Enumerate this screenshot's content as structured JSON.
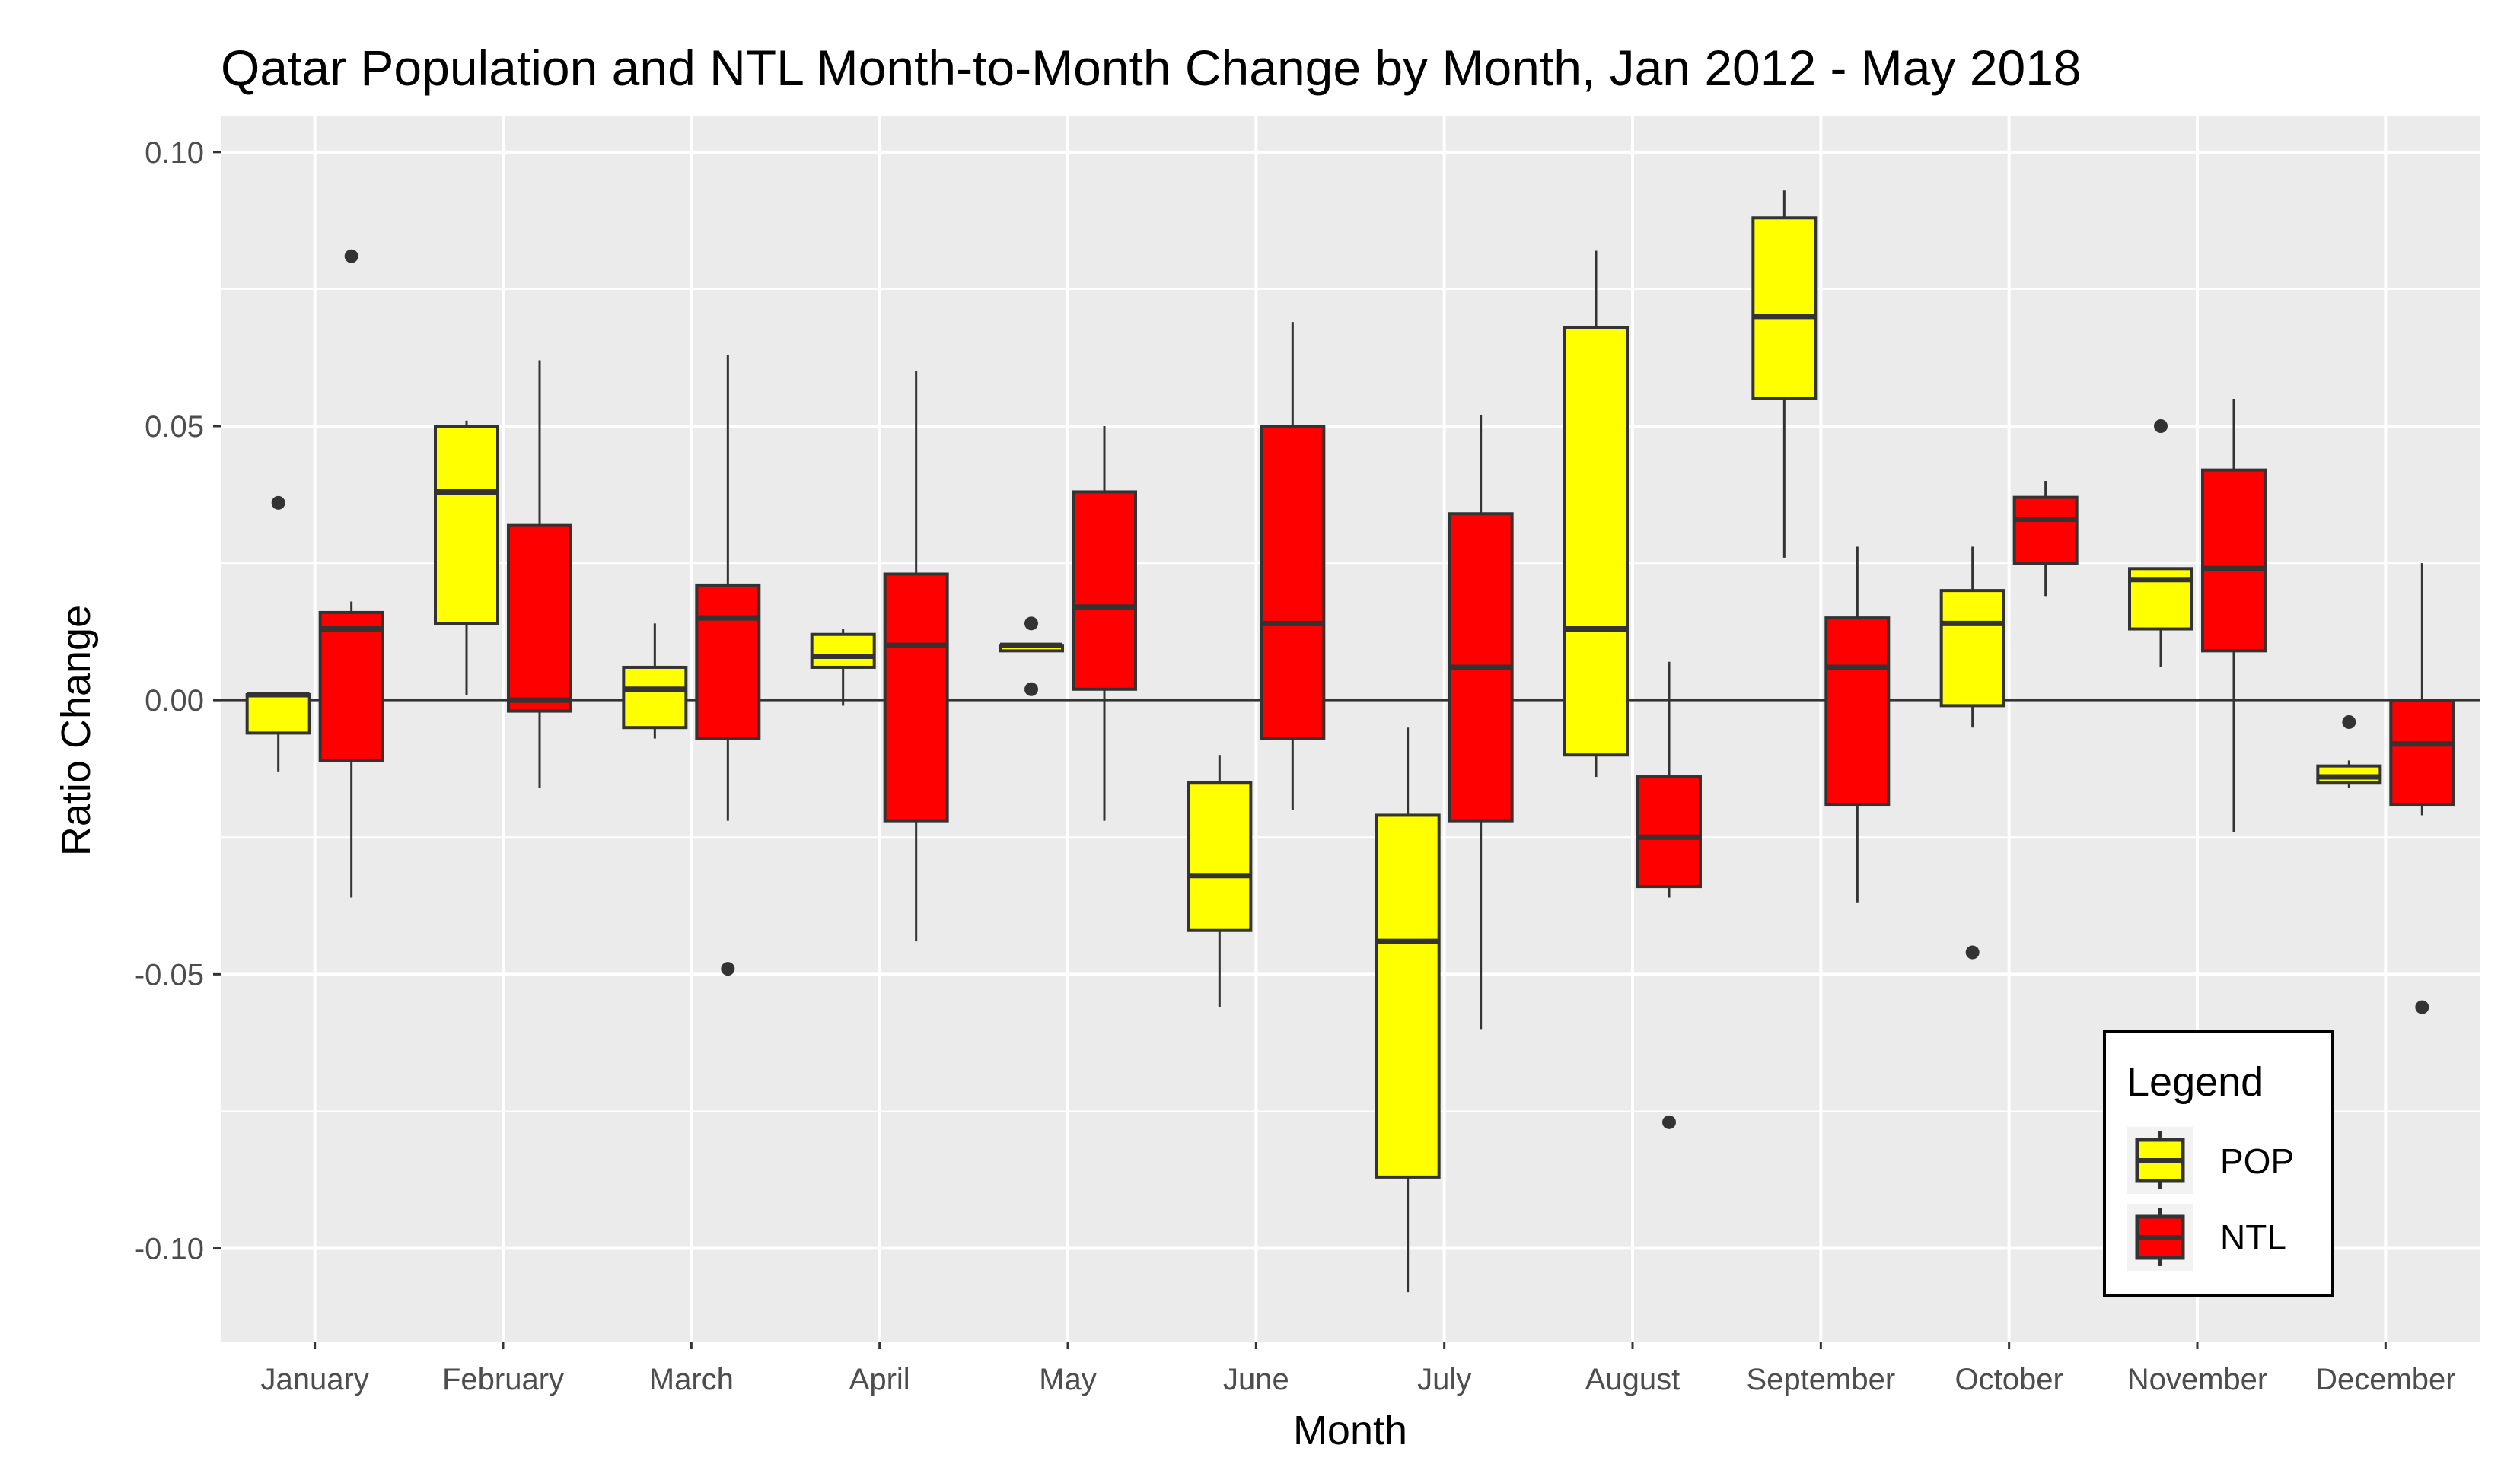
{
  "chart_data": {
    "type": "boxplot",
    "title": "Qatar Population and NTL Month-to-Month Change by Month, Jan 2012 - May 2018",
    "xlabel": "Month",
    "ylabel": "Ratio Change",
    "ylim": [
      -0.117,
      0.1065
    ],
    "yticks": [
      0.1,
      0.05,
      0.0,
      -0.05,
      -0.1
    ],
    "ytick_labels": [
      "0.10",
      "0.05",
      "0.00",
      "-0.05",
      "-0.10"
    ],
    "reference_line_y": 0.0,
    "categories": [
      "January",
      "February",
      "March",
      "April",
      "May",
      "June",
      "July",
      "August",
      "September",
      "October",
      "November",
      "December"
    ],
    "legend": {
      "title": "Legend",
      "position": "bottom-right",
      "entries": [
        {
          "name": "POP",
          "color": "#ffff00"
        },
        {
          "name": "NTL",
          "color": "#ff0000"
        }
      ]
    },
    "series": [
      {
        "name": "POP",
        "color": "#ffff00",
        "boxes": [
          {
            "min": -0.013,
            "q1": -0.006,
            "median": 0.001,
            "q3": 0.001,
            "max": 0.001,
            "outliers": [
              0.036
            ]
          },
          {
            "min": 0.001,
            "q1": 0.014,
            "median": 0.038,
            "q3": 0.05,
            "max": 0.051,
            "outliers": []
          },
          {
            "min": -0.007,
            "q1": -0.005,
            "median": 0.002,
            "q3": 0.006,
            "max": 0.014,
            "outliers": []
          },
          {
            "min": -0.001,
            "q1": 0.006,
            "median": 0.008,
            "q3": 0.012,
            "max": 0.013,
            "outliers": []
          },
          {
            "min": 0.009,
            "q1": 0.009,
            "median": 0.01,
            "q3": 0.01,
            "max": 0.01,
            "outliers": [
              0.014,
              0.002
            ]
          },
          {
            "min": -0.056,
            "q1": -0.042,
            "median": -0.032,
            "q3": -0.015,
            "max": -0.01,
            "outliers": []
          },
          {
            "min": -0.108,
            "q1": -0.087,
            "median": -0.044,
            "q3": -0.021,
            "max": -0.005,
            "outliers": []
          },
          {
            "min": -0.014,
            "q1": -0.01,
            "median": 0.013,
            "q3": 0.068,
            "max": 0.082,
            "outliers": []
          },
          {
            "min": 0.026,
            "q1": 0.055,
            "median": 0.07,
            "q3": 0.088,
            "max": 0.093,
            "outliers": []
          },
          {
            "min": -0.005,
            "q1": -0.001,
            "median": 0.014,
            "q3": 0.02,
            "max": 0.028,
            "outliers": [
              -0.046
            ]
          },
          {
            "min": 0.006,
            "q1": 0.013,
            "median": 0.022,
            "q3": 0.024,
            "max": 0.024,
            "outliers": [
              0.05
            ]
          },
          {
            "min": -0.016,
            "q1": -0.015,
            "median": -0.014,
            "q3": -0.012,
            "max": -0.011,
            "outliers": [
              -0.004
            ]
          }
        ]
      },
      {
        "name": "NTL",
        "color": "#ff0000",
        "boxes": [
          {
            "min": -0.036,
            "q1": -0.011,
            "median": 0.013,
            "q3": 0.016,
            "max": 0.018,
            "outliers": [
              0.081
            ]
          },
          {
            "min": -0.016,
            "q1": -0.002,
            "median": 0.0,
            "q3": 0.032,
            "max": 0.062,
            "outliers": []
          },
          {
            "min": -0.022,
            "q1": -0.007,
            "median": 0.015,
            "q3": 0.021,
            "max": 0.063,
            "outliers": [
              -0.049
            ]
          },
          {
            "min": -0.044,
            "q1": -0.022,
            "median": 0.01,
            "q3": 0.023,
            "max": 0.06,
            "outliers": []
          },
          {
            "min": -0.022,
            "q1": 0.002,
            "median": 0.017,
            "q3": 0.038,
            "max": 0.05,
            "outliers": []
          },
          {
            "min": -0.02,
            "q1": -0.007,
            "median": 0.014,
            "q3": 0.05,
            "max": 0.069,
            "outliers": []
          },
          {
            "min": -0.06,
            "q1": -0.022,
            "median": 0.006,
            "q3": 0.034,
            "max": 0.052,
            "outliers": []
          },
          {
            "min": -0.036,
            "q1": -0.034,
            "median": -0.025,
            "q3": -0.014,
            "max": 0.007,
            "outliers": [
              -0.077
            ]
          },
          {
            "min": -0.037,
            "q1": -0.019,
            "median": 0.006,
            "q3": 0.015,
            "max": 0.028,
            "outliers": []
          },
          {
            "min": 0.019,
            "q1": 0.025,
            "median": 0.033,
            "q3": 0.037,
            "max": 0.04,
            "outliers": []
          },
          {
            "min": -0.024,
            "q1": 0.009,
            "median": 0.024,
            "q3": 0.042,
            "max": 0.055,
            "outliers": []
          },
          {
            "min": -0.021,
            "q1": -0.019,
            "median": -0.008,
            "q3": 0.0,
            "max": 0.025,
            "outliers": [
              -0.056
            ]
          }
        ]
      }
    ]
  }
}
